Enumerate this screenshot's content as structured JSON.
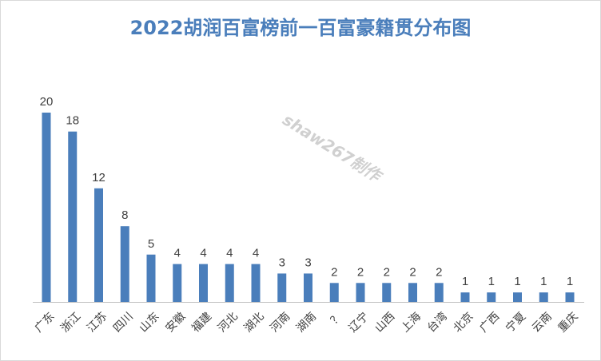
{
  "chart_data": {
    "type": "bar",
    "title": "2022胡润百富榜前一百富豪籍贯分布图",
    "watermark": "shaw267制作",
    "categories": [
      "广东",
      "浙江",
      "江苏",
      "四川",
      "山东",
      "安徽",
      "福建",
      "河北",
      "湖北",
      "河南",
      "湖南",
      "？",
      "辽宁",
      "山西",
      "上海",
      "台湾",
      "北京",
      "广西",
      "宁夏",
      "云南",
      "重庆"
    ],
    "values": [
      20,
      18,
      12,
      8,
      5,
      4,
      4,
      4,
      4,
      3,
      3,
      2,
      2,
      2,
      2,
      2,
      1,
      1,
      1,
      1,
      1
    ],
    "xlabel": "",
    "ylabel": "",
    "ylim": [
      0,
      20
    ],
    "grid": false,
    "bar_color": "#4a7ebb"
  }
}
